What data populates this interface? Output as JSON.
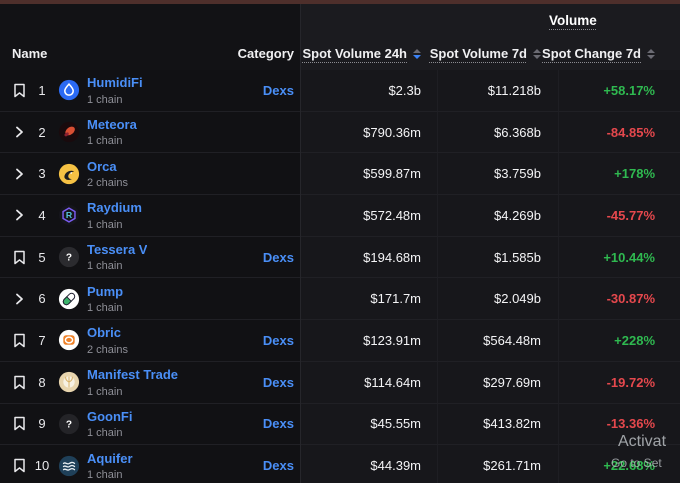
{
  "window": {
    "top_strip_color": "#4e2f2b"
  },
  "table": {
    "group_header": "Volume",
    "sort_by": "vol24",
    "columns": {
      "name": "Name",
      "category": "Category",
      "vol24": "Spot Volume 24h",
      "vol7": "Spot Volume 7d",
      "chg7": "Spot Change 7d"
    },
    "rows": [
      {
        "rank": "1",
        "control": "bookmark",
        "icon": "humidifi-icon",
        "name": "HumidiFi",
        "chains": "1 chain",
        "category": "Dexs",
        "vol24": "$2.3b",
        "vol7": "$11.218b",
        "chg7": "+58.17%"
      },
      {
        "rank": "2",
        "control": "chevron",
        "icon": "meteora-icon",
        "name": "Meteora",
        "chains": "1 chain",
        "category": "",
        "vol24": "$790.36m",
        "vol7": "$6.368b",
        "chg7": "-84.85%"
      },
      {
        "rank": "3",
        "control": "chevron",
        "icon": "orca-icon",
        "name": "Orca",
        "chains": "2 chains",
        "category": "",
        "vol24": "$599.87m",
        "vol7": "$3.759b",
        "chg7": "+178%"
      },
      {
        "rank": "4",
        "control": "chevron",
        "icon": "raydium-icon",
        "name": "Raydium",
        "chains": "1 chain",
        "category": "",
        "vol24": "$572.48m",
        "vol7": "$4.269b",
        "chg7": "-45.77%"
      },
      {
        "rank": "5",
        "control": "bookmark",
        "icon": "tessera-icon",
        "name": "Tessera V",
        "chains": "1 chain",
        "category": "Dexs",
        "vol24": "$194.68m",
        "vol7": "$1.585b",
        "chg7": "+10.44%"
      },
      {
        "rank": "6",
        "control": "chevron",
        "icon": "pump-icon",
        "name": "Pump",
        "chains": "1 chain",
        "category": "",
        "vol24": "$171.7m",
        "vol7": "$2.049b",
        "chg7": "-30.87%"
      },
      {
        "rank": "7",
        "control": "bookmark",
        "icon": "obric-icon",
        "name": "Obric",
        "chains": "2 chains",
        "category": "Dexs",
        "vol24": "$123.91m",
        "vol7": "$564.48m",
        "chg7": "+228%"
      },
      {
        "rank": "8",
        "control": "bookmark",
        "icon": "manifest-icon",
        "name": "Manifest Trade",
        "chains": "1 chain",
        "category": "Dexs",
        "vol24": "$114.64m",
        "vol7": "$297.69m",
        "chg7": "-19.72%"
      },
      {
        "rank": "9",
        "control": "bookmark",
        "icon": "goonfi-icon",
        "name": "GoonFi",
        "chains": "1 chain",
        "category": "Dexs",
        "vol24": "$45.55m",
        "vol7": "$413.82m",
        "chg7": "-13.36%"
      },
      {
        "rank": "10",
        "control": "bookmark",
        "icon": "aquifer-icon",
        "name": "Aquifer",
        "chains": "1 chain",
        "category": "Dexs",
        "vol24": "$44.39m",
        "vol7": "$261.71m",
        "chg7": "+22.68%"
      }
    ]
  },
  "colors": {
    "positive": "#2fb950",
    "negative": "#e5484d",
    "link": "#4a8ff7",
    "sort_active": "#3b82f6"
  },
  "watermark": {
    "line1": "Activat",
    "line2": "Go to Set"
  }
}
